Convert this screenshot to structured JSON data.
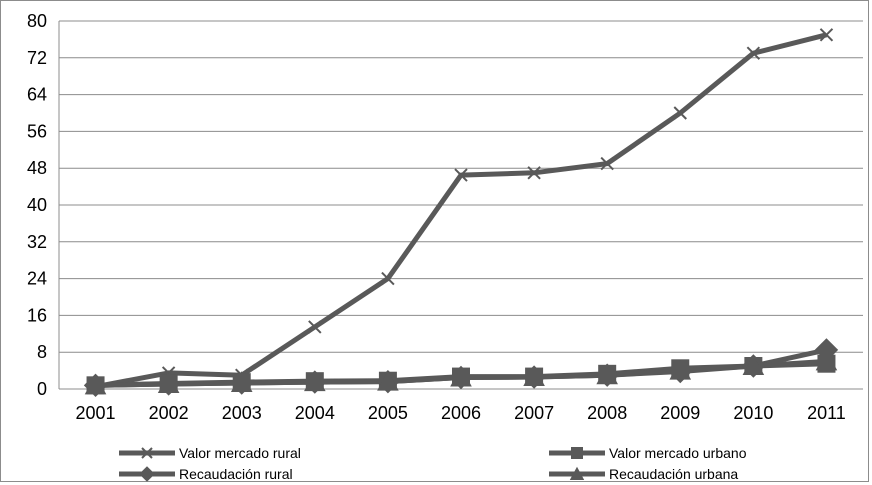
{
  "chart_data": {
    "type": "line",
    "x": [
      "2001",
      "2002",
      "2003",
      "2004",
      "2005",
      "2006",
      "2007",
      "2008",
      "2009",
      "2010",
      "2011"
    ],
    "ylim": [
      0,
      80
    ],
    "yticks": [
      0,
      8,
      16,
      24,
      32,
      40,
      48,
      56,
      64,
      72,
      80
    ],
    "grid": true,
    "legend_position": "bottom",
    "series_color": "#595959",
    "series": [
      {
        "name": "Valor mercado rural",
        "marker": "x",
        "values": [
          0.5,
          3.5,
          3,
          13.5,
          24,
          46.5,
          47,
          49,
          60,
          73,
          77
        ]
      },
      {
        "name": "Valor mercado urbano",
        "marker": "square",
        "values": [
          0.8,
          1.2,
          1.5,
          1.7,
          1.8,
          2.7,
          2.7,
          3.3,
          4.5,
          5,
          5.5
        ]
      },
      {
        "name": "Recaudación rural",
        "marker": "diamond",
        "values": [
          0.8,
          1.1,
          1.3,
          1.5,
          1.6,
          2.5,
          2.6,
          3,
          3.8,
          5,
          8.5
        ]
      },
      {
        "name": "Recaudación urbana",
        "marker": "triangle",
        "values": [
          0.8,
          1.1,
          1.3,
          1.5,
          1.6,
          2.5,
          2.6,
          3,
          4,
          5,
          6
        ]
      }
    ]
  }
}
